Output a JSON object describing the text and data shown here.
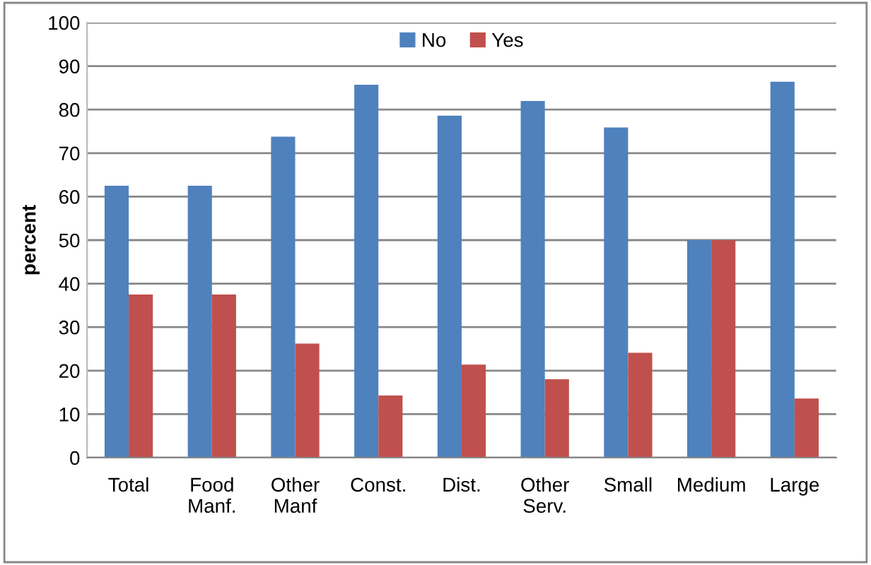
{
  "chart_data": {
    "type": "bar",
    "ylabel": "percent",
    "categories": [
      "Total",
      "Food\nManf.",
      "Other\nManf",
      "Const.",
      "Dist.",
      "Other\nServ.",
      "Small",
      "Medium",
      "Large"
    ],
    "series": [
      {
        "name": "No",
        "color": "#4f81bd",
        "values": [
          62.5,
          62.5,
          73.8,
          85.7,
          78.6,
          82,
          75.9,
          50,
          86.4
        ]
      },
      {
        "name": "Yes",
        "color": "#c0504d",
        "values": [
          37.5,
          37.5,
          26.2,
          14.3,
          21.4,
          18,
          24.1,
          50,
          13.6
        ]
      }
    ],
    "ylim": [
      0,
      100
    ],
    "yticks": [
      0,
      10,
      20,
      30,
      40,
      50,
      60,
      70,
      80,
      90,
      100
    ],
    "grid": "y",
    "legend": "top"
  }
}
